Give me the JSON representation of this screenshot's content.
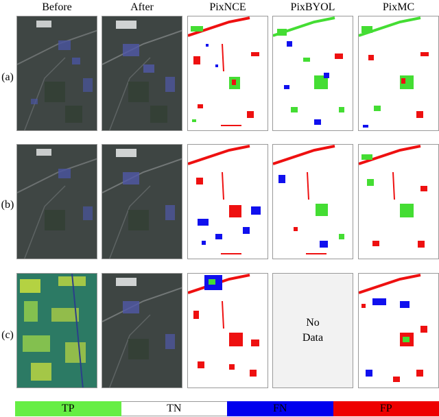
{
  "columns": [
    "Before",
    "After",
    "PixNCE",
    "PixBYOL",
    "PixMC"
  ],
  "rows": [
    "(a)",
    "(b)",
    "(c)"
  ],
  "no_data_text": "No\nData",
  "legend": [
    {
      "label": "TP",
      "color": "#66ee44"
    },
    {
      "label": "TN",
      "color": "#ffffff"
    },
    {
      "label": "FN",
      "color": "#0000ee"
    },
    {
      "label": "FP",
      "color": "#ee0000"
    }
  ],
  "colors": {
    "tp": "#44dd33",
    "fn": "#1010ee",
    "fp": "#ee1010",
    "road": "#6b7070",
    "ndvi_yellow": "#d7e83a"
  }
}
